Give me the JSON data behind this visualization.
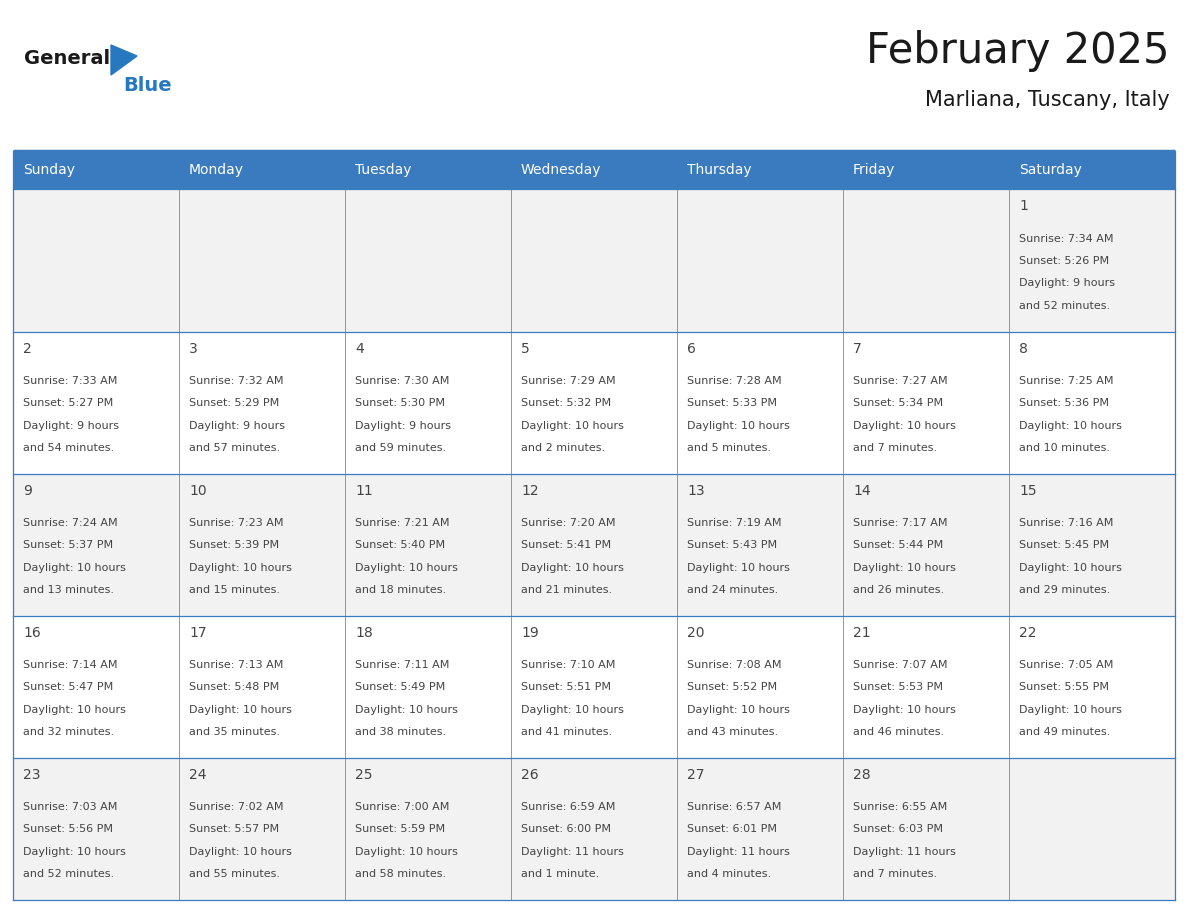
{
  "title": "February 2025",
  "subtitle": "Marliana, Tuscany, Italy",
  "days_of_week": [
    "Sunday",
    "Monday",
    "Tuesday",
    "Wednesday",
    "Thursday",
    "Friday",
    "Saturday"
  ],
  "header_bg": "#3a7bbf",
  "header_text": "#ffffff",
  "border_color": "#3a7bbf",
  "text_color": "#444444",
  "title_color": "#1a1a1a",
  "logo_general_color": "#1a1a1a",
  "logo_blue_color": "#2878c0",
  "row_bg_odd": "#f2f2f2",
  "row_bg_even": "#ffffff",
  "calendar_data": [
    [
      null,
      null,
      null,
      null,
      null,
      null,
      {
        "day": "1",
        "sunrise": "7:34 AM",
        "sunset": "5:26 PM",
        "daylight_line1": "9 hours",
        "daylight_line2": "and 52 minutes."
      }
    ],
    [
      {
        "day": "2",
        "sunrise": "7:33 AM",
        "sunset": "5:27 PM",
        "daylight_line1": "9 hours",
        "daylight_line2": "and 54 minutes."
      },
      {
        "day": "3",
        "sunrise": "7:32 AM",
        "sunset": "5:29 PM",
        "daylight_line1": "9 hours",
        "daylight_line2": "and 57 minutes."
      },
      {
        "day": "4",
        "sunrise": "7:30 AM",
        "sunset": "5:30 PM",
        "daylight_line1": "9 hours",
        "daylight_line2": "and 59 minutes."
      },
      {
        "day": "5",
        "sunrise": "7:29 AM",
        "sunset": "5:32 PM",
        "daylight_line1": "10 hours",
        "daylight_line2": "and 2 minutes."
      },
      {
        "day": "6",
        "sunrise": "7:28 AM",
        "sunset": "5:33 PM",
        "daylight_line1": "10 hours",
        "daylight_line2": "and 5 minutes."
      },
      {
        "day": "7",
        "sunrise": "7:27 AM",
        "sunset": "5:34 PM",
        "daylight_line1": "10 hours",
        "daylight_line2": "and 7 minutes."
      },
      {
        "day": "8",
        "sunrise": "7:25 AM",
        "sunset": "5:36 PM",
        "daylight_line1": "10 hours",
        "daylight_line2": "and 10 minutes."
      }
    ],
    [
      {
        "day": "9",
        "sunrise": "7:24 AM",
        "sunset": "5:37 PM",
        "daylight_line1": "10 hours",
        "daylight_line2": "and 13 minutes."
      },
      {
        "day": "10",
        "sunrise": "7:23 AM",
        "sunset": "5:39 PM",
        "daylight_line1": "10 hours",
        "daylight_line2": "and 15 minutes."
      },
      {
        "day": "11",
        "sunrise": "7:21 AM",
        "sunset": "5:40 PM",
        "daylight_line1": "10 hours",
        "daylight_line2": "and 18 minutes."
      },
      {
        "day": "12",
        "sunrise": "7:20 AM",
        "sunset": "5:41 PM",
        "daylight_line1": "10 hours",
        "daylight_line2": "and 21 minutes."
      },
      {
        "day": "13",
        "sunrise": "7:19 AM",
        "sunset": "5:43 PM",
        "daylight_line1": "10 hours",
        "daylight_line2": "and 24 minutes."
      },
      {
        "day": "14",
        "sunrise": "7:17 AM",
        "sunset": "5:44 PM",
        "daylight_line1": "10 hours",
        "daylight_line2": "and 26 minutes."
      },
      {
        "day": "15",
        "sunrise": "7:16 AM",
        "sunset": "5:45 PM",
        "daylight_line1": "10 hours",
        "daylight_line2": "and 29 minutes."
      }
    ],
    [
      {
        "day": "16",
        "sunrise": "7:14 AM",
        "sunset": "5:47 PM",
        "daylight_line1": "10 hours",
        "daylight_line2": "and 32 minutes."
      },
      {
        "day": "17",
        "sunrise": "7:13 AM",
        "sunset": "5:48 PM",
        "daylight_line1": "10 hours",
        "daylight_line2": "and 35 minutes."
      },
      {
        "day": "18",
        "sunrise": "7:11 AM",
        "sunset": "5:49 PM",
        "daylight_line1": "10 hours",
        "daylight_line2": "and 38 minutes."
      },
      {
        "day": "19",
        "sunrise": "7:10 AM",
        "sunset": "5:51 PM",
        "daylight_line1": "10 hours",
        "daylight_line2": "and 41 minutes."
      },
      {
        "day": "20",
        "sunrise": "7:08 AM",
        "sunset": "5:52 PM",
        "daylight_line1": "10 hours",
        "daylight_line2": "and 43 minutes."
      },
      {
        "day": "21",
        "sunrise": "7:07 AM",
        "sunset": "5:53 PM",
        "daylight_line1": "10 hours",
        "daylight_line2": "and 46 minutes."
      },
      {
        "day": "22",
        "sunrise": "7:05 AM",
        "sunset": "5:55 PM",
        "daylight_line1": "10 hours",
        "daylight_line2": "and 49 minutes."
      }
    ],
    [
      {
        "day": "23",
        "sunrise": "7:03 AM",
        "sunset": "5:56 PM",
        "daylight_line1": "10 hours",
        "daylight_line2": "and 52 minutes."
      },
      {
        "day": "24",
        "sunrise": "7:02 AM",
        "sunset": "5:57 PM",
        "daylight_line1": "10 hours",
        "daylight_line2": "and 55 minutes."
      },
      {
        "day": "25",
        "sunrise": "7:00 AM",
        "sunset": "5:59 PM",
        "daylight_line1": "10 hours",
        "daylight_line2": "and 58 minutes."
      },
      {
        "day": "26",
        "sunrise": "6:59 AM",
        "sunset": "6:00 PM",
        "daylight_line1": "11 hours",
        "daylight_line2": "and 1 minute."
      },
      {
        "day": "27",
        "sunrise": "6:57 AM",
        "sunset": "6:01 PM",
        "daylight_line1": "11 hours",
        "daylight_line2": "and 4 minutes."
      },
      {
        "day": "28",
        "sunrise": "6:55 AM",
        "sunset": "6:03 PM",
        "daylight_line1": "11 hours",
        "daylight_line2": "and 7 minutes."
      },
      null
    ]
  ]
}
